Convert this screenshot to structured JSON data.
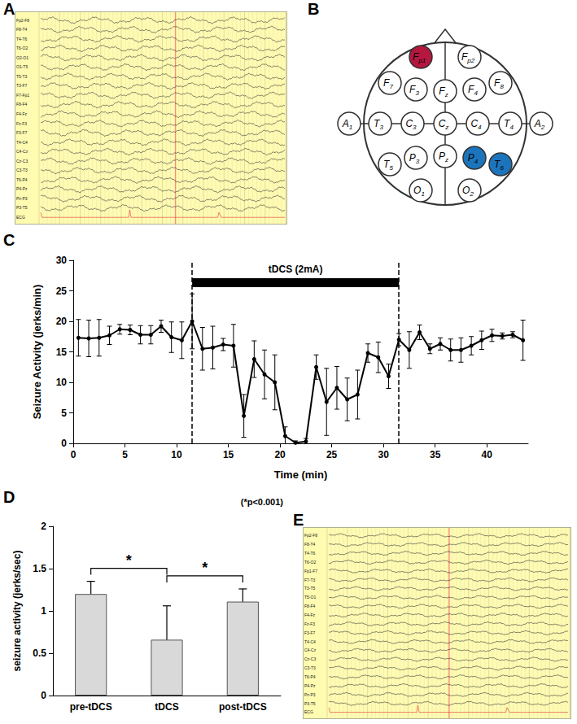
{
  "panels": {
    "A": {
      "panel_label": "A",
      "channels": [
        "Fp2-F8",
        "F8-T4",
        "T4-T6",
        "T6-O2",
        "O2-O1",
        "O1-T5",
        "T5-T3",
        "T3-F7",
        "F7-Fp1",
        "F8-F4",
        "F4-Fz",
        "Fz-F3",
        "F3-F7",
        "T4-C4",
        "C4-Cz",
        "Cz-C3",
        "C3-T3",
        "T6-P4",
        "P4-Pz",
        "Pz-P3",
        "P3-T5",
        "ECG"
      ]
    },
    "B": {
      "panel_label": "B",
      "electrodes": [
        {
          "label": "Fp1",
          "color": "#b5173f"
        },
        {
          "label": "Fp2"
        },
        {
          "label": "F7"
        },
        {
          "label": "F3"
        },
        {
          "label": "Fz"
        },
        {
          "label": "F4"
        },
        {
          "label": "F8"
        },
        {
          "label": "A1"
        },
        {
          "label": "T3"
        },
        {
          "label": "C3"
        },
        {
          "label": "Cz"
        },
        {
          "label": "C4"
        },
        {
          "label": "T4"
        },
        {
          "label": "A2"
        },
        {
          "label": "T5"
        },
        {
          "label": "P3"
        },
        {
          "label": "Pz"
        },
        {
          "label": "P4",
          "color": "#1c75bc"
        },
        {
          "label": "T6",
          "color": "#1c75bc"
        },
        {
          "label": "O1"
        },
        {
          "label": "O2"
        }
      ]
    },
    "E": {
      "panel_label": "E",
      "channels": [
        "Fp2-F8",
        "F8-T4",
        "T4-T6",
        "T6-O2",
        "Fp1-F7",
        "F7-T3",
        "T3-T5",
        "T5-O1",
        "F8-F4",
        "F4-Fz",
        "Fz-F3",
        "F3-F7",
        "T4-C4",
        "C4-Cz",
        "Cz-C3",
        "C3-T3",
        "T6-P4",
        "P4-Pz",
        "Pz-P3",
        "P3-T5",
        "ECG"
      ]
    }
  },
  "chart_data": [
    {
      "panel_label": "C",
      "type": "line",
      "x": [
        0.5,
        1.5,
        2.5,
        3.5,
        4.5,
        5.5,
        6.5,
        7.5,
        8.5,
        9.5,
        10.5,
        11.5,
        12.5,
        13.5,
        14.5,
        15.5,
        16.5,
        17.5,
        18.5,
        19.5,
        20.5,
        21.5,
        22.5,
        23.5,
        24.5,
        25.5,
        26.5,
        27.5,
        28.5,
        29.5,
        30.5,
        31.5,
        32.5,
        33.5,
        34.5,
        35.5,
        36.5,
        37.5,
        38.5,
        39.5,
        40.5,
        41.5,
        42.5,
        43.5
      ],
      "values": [
        17.3,
        17.2,
        17.3,
        17.7,
        18.7,
        18.6,
        17.8,
        17.8,
        19.2,
        17.4,
        16.9,
        20.0,
        15.5,
        15.7,
        16.2,
        16.0,
        4.5,
        13.8,
        11.3,
        10.0,
        1.2,
        0.1,
        0.3,
        12.5,
        6.8,
        9.1,
        7.2,
        8.0,
        14.8,
        14.1,
        11.0,
        17.0,
        15.3,
        18.2,
        15.5,
        16.3,
        15.3,
        15.3,
        16.0,
        16.9,
        17.7,
        17.6,
        17.8,
        16.9
      ],
      "errors": [
        3,
        3,
        3,
        1.5,
        0.8,
        0.8,
        1.5,
        1.5,
        1,
        2.5,
        3,
        4.5,
        3.5,
        3.5,
        1,
        3.5,
        3.5,
        3,
        4,
        4.5,
        1.5,
        0.3,
        0.5,
        2,
        5.5,
        3.5,
        3.5,
        4,
        1.5,
        2.5,
        2,
        1,
        3,
        1.2,
        0.8,
        1,
        1.8,
        2,
        1.5,
        1.5,
        1,
        0.5,
        0.5,
        3.3
      ],
      "color": "#000000",
      "marker": "circle",
      "xlabel": "Time (min)",
      "ylabel": "Seizure Activity (jerks/min)",
      "xlim": [
        0,
        44
      ],
      "xticks": [
        0,
        5,
        10,
        15,
        20,
        25,
        30,
        35,
        40
      ],
      "ylim": [
        0,
        30
      ],
      "yticks": [
        0,
        5,
        10,
        15,
        20,
        25,
        30
      ],
      "stimulation": {
        "start": 11.5,
        "end": 31.5,
        "label": "tDCS (2mA)"
      },
      "grid": false
    },
    {
      "panel_label": "D",
      "type": "bar",
      "categories": [
        "pre-tDCS",
        "tDCS",
        "post-tDCS"
      ],
      "values": [
        1.2,
        0.66,
        1.11
      ],
      "errors": [
        0.15,
        0.4,
        0.15
      ],
      "color": "#d9d9d9",
      "ylabel": "seizure activity (jerks/sec)",
      "ylim": [
        0,
        2
      ],
      "yticks": [
        0,
        0.5,
        1,
        1.5,
        2
      ],
      "significance": [
        {
          "from": 0,
          "to": 1,
          "label": "*"
        },
        {
          "from": 1,
          "to": 2,
          "label": "*"
        }
      ],
      "note": "(*p<0.001)",
      "grid": false
    }
  ]
}
